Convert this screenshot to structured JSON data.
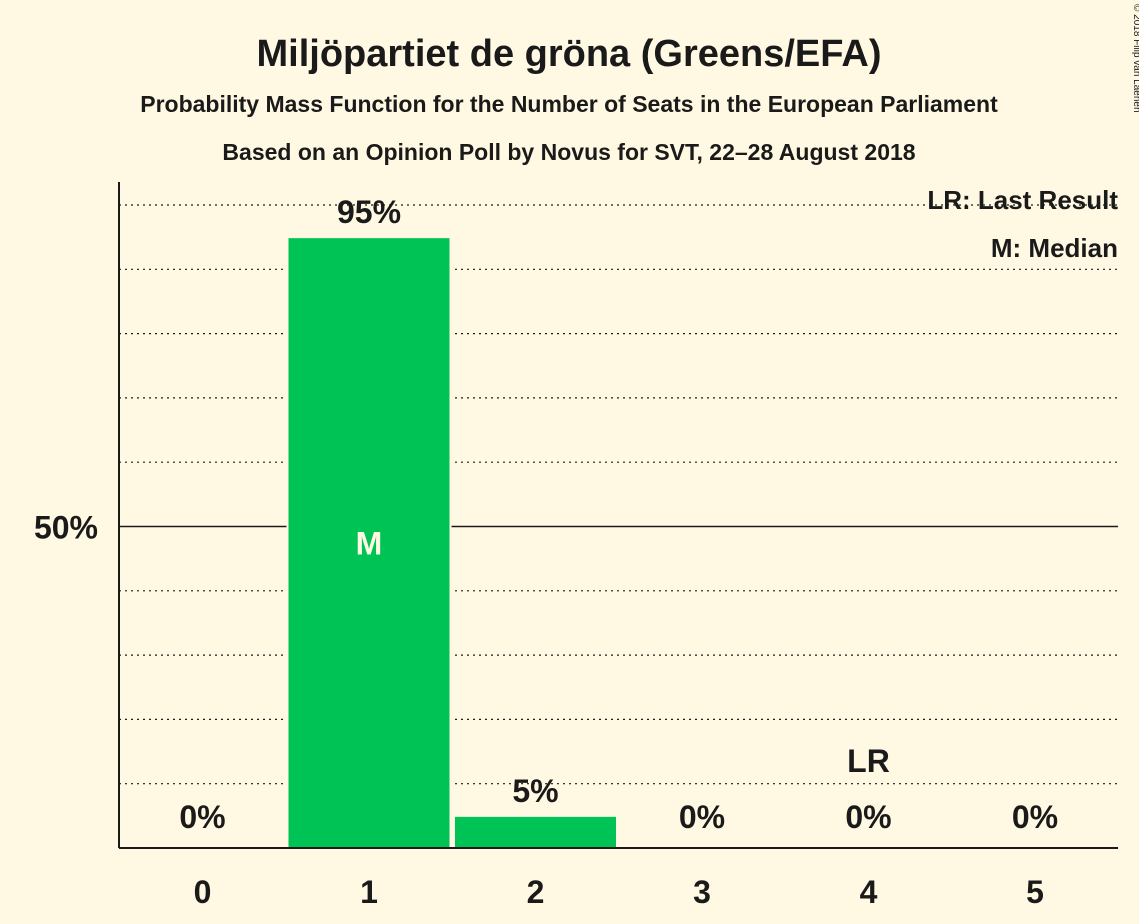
{
  "chart_data": {
    "type": "bar",
    "title": "Miljöpartiet de gröna (Greens/EFA)",
    "subtitle": "Probability Mass Function for the Number of Seats in the European Parliament",
    "subtitle2": "Based on an Opinion Poll by Novus for SVT, 22–28 August 2018",
    "categories": [
      "0",
      "1",
      "2",
      "3",
      "4",
      "5"
    ],
    "values": [
      0,
      95,
      5,
      0,
      0,
      0
    ],
    "value_labels": [
      "0%",
      "95%",
      "5%",
      "0%",
      "0%",
      "0%"
    ],
    "ylim": [
      0,
      100
    ],
    "y_ticks": [
      {
        "value": 50,
        "label": "50%"
      }
    ],
    "grid": true,
    "median": {
      "category": "1",
      "label": "M"
    },
    "last_result": {
      "category": "4",
      "label": "LR"
    },
    "legend": [
      "LR: Last Result",
      "M: Median"
    ],
    "legend_position": "top-right",
    "bar_color": "#00C355",
    "background_color": "#FFF9E3",
    "copyright": "© 2018 Filip van Laenen"
  }
}
